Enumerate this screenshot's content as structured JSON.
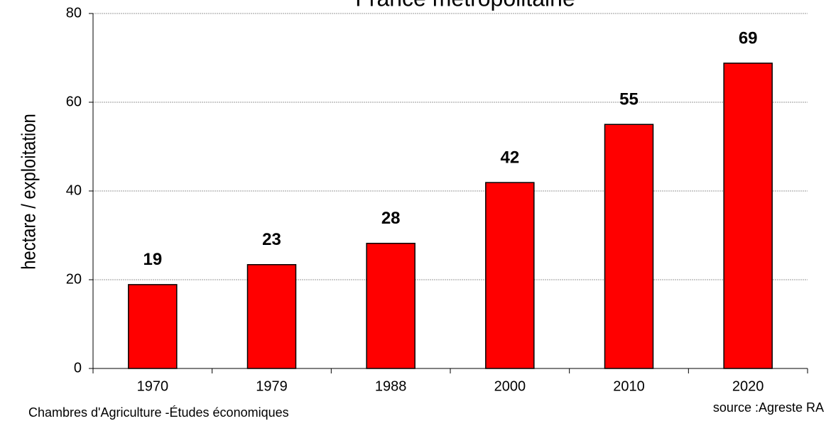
{
  "chart_data": {
    "type": "bar",
    "title": "France métropolitaine",
    "y_label": "hectare / exploitation",
    "categories": [
      "1970",
      "1979",
      "1988",
      "2000",
      "2010",
      "2020"
    ],
    "values": [
      18.9,
      23.4,
      28.2,
      41.9,
      55,
      68.8
    ],
    "value_labels": [
      "19",
      "23",
      "28",
      "42",
      "55",
      "69"
    ],
    "color": "#ff0000",
    "ylim": [
      0,
      80
    ],
    "yticks": [
      0,
      20,
      40,
      60,
      80
    ],
    "grid": true,
    "source": "source :Agreste RA",
    "credit": "Chambres d'Agriculture -Études économiques"
  }
}
